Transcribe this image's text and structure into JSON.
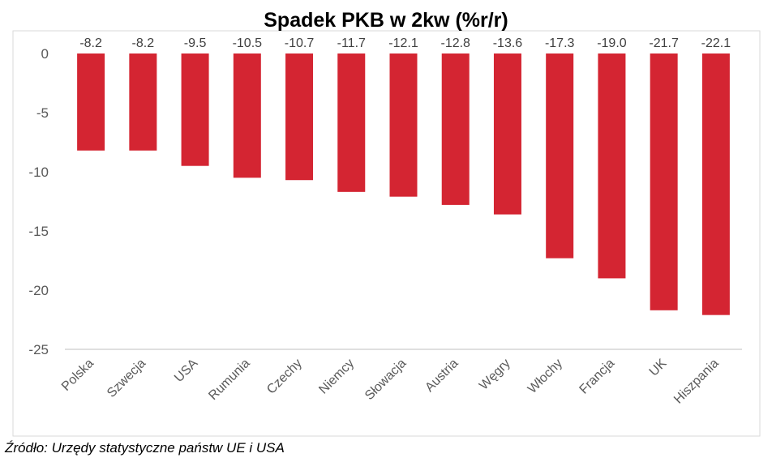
{
  "source_note": "Źródło: Urzędy statystyczne państw UE i USA",
  "chart_data": {
    "type": "bar",
    "title": "Spadek PKB w 2kw (%r/r)",
    "categories": [
      "Polska",
      "Szwecja",
      "USA",
      "Rumunia",
      "Czechy",
      "Niemcy",
      "Słowacja",
      "Austria",
      "Węgry",
      "Włochy",
      "Francja",
      "UK",
      "Hiszpania"
    ],
    "values": [
      -8.2,
      -8.2,
      -9.5,
      -10.5,
      -10.7,
      -11.7,
      -12.1,
      -12.8,
      -13.6,
      -17.3,
      -19.0,
      -21.7,
      -22.1
    ],
    "data_labels": [
      "-8.2",
      "-8.2",
      "-9.5",
      "-10.5",
      "-10.7",
      "-11.7",
      "-12.1",
      "-12.8",
      "-13.6",
      "-17.3",
      "-19.0",
      "-21.7",
      "-22.1"
    ],
    "ylim": [
      -25,
      0
    ],
    "yticks": [
      0,
      -5,
      -10,
      -15,
      -20,
      -25
    ],
    "xlabel": "",
    "ylabel": "",
    "grid": false,
    "legend": "none",
    "bar_color": "#d42532",
    "axis_color": "#bfbfbf",
    "text_color": "#595959"
  }
}
